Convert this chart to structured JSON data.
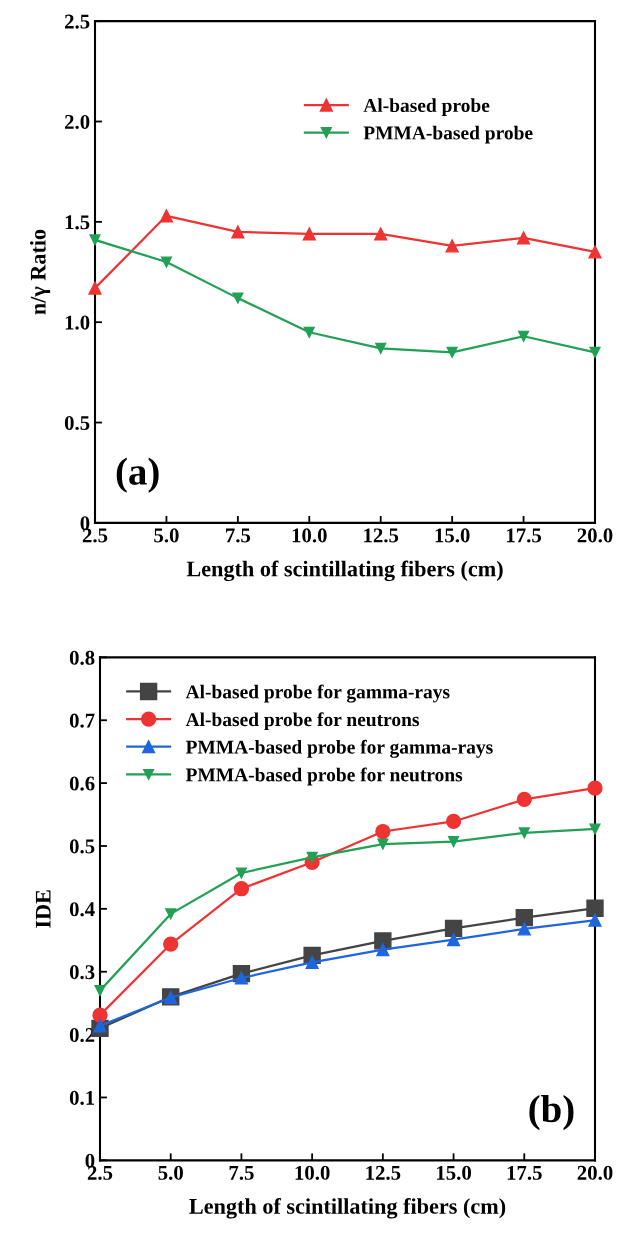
{
  "chart_data": [
    {
      "type": "line",
      "xlabel": "Length of scintillating fibers (cm)",
      "ylabel": "n/γ Ratio",
      "x": [
        2.5,
        5.0,
        7.5,
        10.0,
        12.5,
        15.0,
        17.5,
        20.0
      ],
      "series": [
        {
          "name": "Al-based probe",
          "color": "#ee3333",
          "marker": "triangle",
          "values": [
            1.17,
            1.53,
            1.45,
            1.44,
            1.44,
            1.38,
            1.42,
            1.35
          ]
        },
        {
          "name": "PMMA-based probe",
          "color": "#22a055",
          "marker": "triangle_down",
          "values": [
            1.41,
            1.3,
            1.12,
            0.95,
            0.87,
            0.85,
            0.93,
            0.85
          ]
        }
      ],
      "xlim": [
        2.5,
        20.0
      ],
      "xticks": [
        {
          "value": 2.5,
          "label": "2.5"
        },
        {
          "value": 5.0,
          "label": "5.0"
        },
        {
          "value": 7.5,
          "label": "7.5"
        },
        {
          "value": 10.0,
          "label": "10.0"
        },
        {
          "value": 12.5,
          "label": "12.5"
        },
        {
          "value": 15.0,
          "label": "15.0"
        },
        {
          "value": 17.5,
          "label": "17.5"
        },
        {
          "value": 20.0,
          "label": "20.0"
        }
      ],
      "ylim": [
        0,
        2.5
      ],
      "yticks": [
        0,
        0.5,
        {
          "value": 1.0,
          "label": "1.0"
        },
        1.5,
        {
          "value": 2.0,
          "label": "2.0"
        },
        2.5
      ],
      "annotations": [
        "(a)"
      ],
      "legend": "top right",
      "grid": false,
      "line_style": "solid"
    },
    {
      "type": "line",
      "xlabel": "Length of scintillating fibers (cm)",
      "ylabel": "IDE",
      "x": [
        2.5,
        5.0,
        7.5,
        10.0,
        12.5,
        15.0,
        17.5,
        20.0
      ],
      "series": [
        {
          "name": "Al-based probe for gamma-rays",
          "color": "#444444",
          "marker": "square",
          "values": [
            0.21,
            0.26,
            0.297,
            0.326,
            0.349,
            0.369,
            0.386,
            0.401
          ]
        },
        {
          "name": "Al-based probe for neutrons",
          "color": "#ee3333",
          "marker": "circle",
          "values": [
            0.231,
            0.344,
            0.432,
            0.474,
            0.523,
            0.539,
            0.574,
            0.592
          ]
        },
        {
          "name": "PMMA-based probe for gamma-rays",
          "color": "#1f66dd",
          "marker": "triangle",
          "values": [
            0.214,
            0.259,
            0.29,
            0.315,
            0.335,
            0.351,
            0.368,
            0.382
          ]
        },
        {
          "name": "PMMA-based probe for neutrons",
          "color": "#22a055",
          "marker": "triangle_down",
          "values": [
            0.27,
            0.392,
            0.457,
            0.482,
            0.503,
            0.507,
            0.521,
            0.527
          ]
        }
      ],
      "xlim": [
        2.5,
        20.0
      ],
      "xticks": [
        {
          "value": 2.5,
          "label": "2.5"
        },
        {
          "value": 5.0,
          "label": "5.0"
        },
        {
          "value": 7.5,
          "label": "7.5"
        },
        {
          "value": 10.0,
          "label": "10.0"
        },
        {
          "value": 12.5,
          "label": "12.5"
        },
        {
          "value": 15.0,
          "label": "15.0"
        },
        {
          "value": 17.5,
          "label": "17.5"
        },
        {
          "value": 20.0,
          "label": "20.0"
        }
      ],
      "ylim": [
        0,
        0.8
      ],
      "yticks": [
        0,
        0.1,
        0.2,
        0.3,
        0.4,
        0.5,
        0.6,
        0.7,
        0.8
      ],
      "annotations": [
        "(b)"
      ],
      "legend": "top left",
      "grid": false,
      "line_style": "solid"
    }
  ]
}
